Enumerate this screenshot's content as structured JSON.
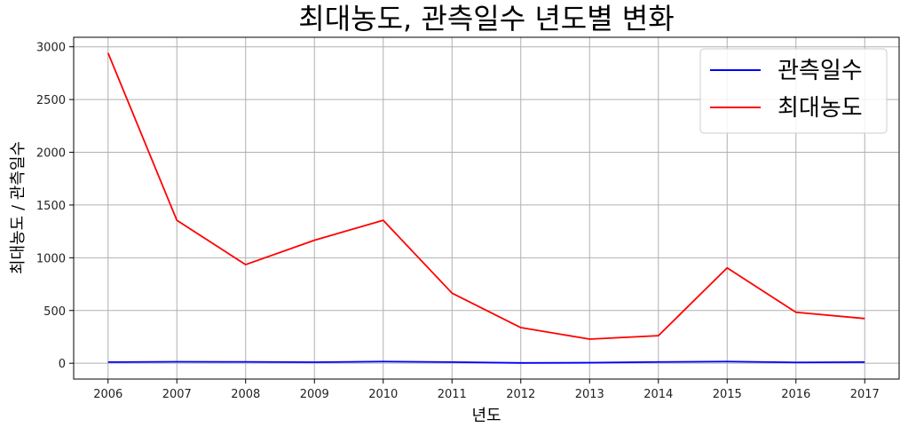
{
  "chart_data": {
    "type": "line",
    "title": "최대농도, 관측일수 년도별 변화",
    "xlabel": "년도",
    "ylabel": "최대농도 / 관측일수",
    "x": [
      2006,
      2007,
      2008,
      2009,
      2010,
      2011,
      2012,
      2013,
      2014,
      2015,
      2016,
      2017
    ],
    "xticks": [
      "2006",
      "2007",
      "2008",
      "2009",
      "2010",
      "2011",
      "2012",
      "2013",
      "2014",
      "2015",
      "2016",
      "2017"
    ],
    "yticks": [
      0,
      500,
      1000,
      1500,
      2000,
      2500,
      3000
    ],
    "ylim": [
      -150,
      3090
    ],
    "xlim": [
      2005.5,
      2017.5
    ],
    "grid": true,
    "legend_position": "top-right",
    "series": [
      {
        "name": "관측일수",
        "color": "#0000ff",
        "values": [
          11,
          14,
          13,
          10,
          16,
          11,
          3,
          5,
          12,
          16,
          8,
          11
        ]
      },
      {
        "name": "최대농도",
        "color": "#ff0000",
        "values": [
          2941,
          1355,
          935,
          1166,
          1355,
          665,
          338,
          229,
          261,
          904,
          483,
          424
        ]
      }
    ]
  }
}
